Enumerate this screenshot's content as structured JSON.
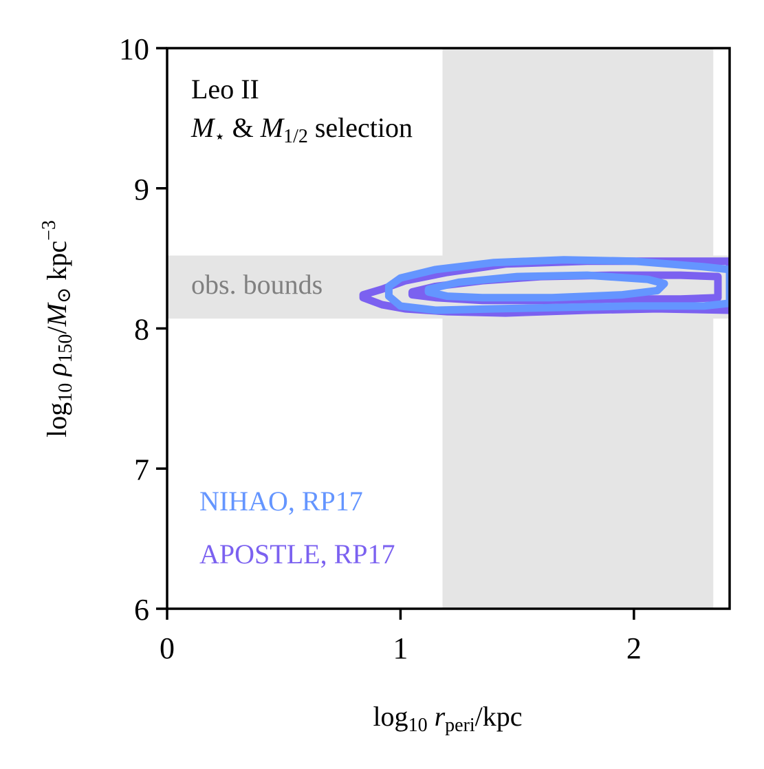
{
  "chart_data": {
    "type": "contour",
    "xlim": [
      0,
      2.41
    ],
    "ylim": [
      6,
      10
    ],
    "x_ticks": [
      0,
      1,
      2
    ],
    "y_ticks": [
      6,
      7,
      8,
      9,
      10
    ],
    "xlabel": {
      "prefix": "log",
      "sub": "10",
      "var": "r",
      "var_sub": "peri",
      "unit": "/kpc"
    },
    "ylabel": {
      "prefix": "log",
      "sub": "10",
      "var": "ρ",
      "var_sub": "150",
      "unit_pre": "/",
      "unit_m": "M",
      "unit_odot": "⊙",
      "unit_kpc": " kpc",
      "unit_exp": "−3"
    },
    "annotation": {
      "name": "Leo II",
      "sel_m": "M",
      "sel_star": "⋆",
      "sel_amp": " & ",
      "sel_m2": "M",
      "sel_half": "1/2",
      "sel_word": " selection"
    },
    "bands": [
      {
        "orientation": "vertical",
        "x_range": [
          1.18,
          2.34
        ],
        "color": "#e5e5e5"
      },
      {
        "orientation": "horizontal",
        "y_range": [
          8.07,
          8.52
        ],
        "color": "#e5e5e5",
        "label": "obs. bounds",
        "label_color": "#808080"
      }
    ],
    "series": [
      {
        "name": "APOSTLE, RP17",
        "color": "#7b61f0",
        "contours": [
          [
            [
              0.84,
              8.24
            ],
            [
              0.92,
              8.28
            ],
            [
              1.02,
              8.34
            ],
            [
              1.2,
              8.4
            ],
            [
              1.45,
              8.46
            ],
            [
              1.8,
              8.48
            ],
            [
              2.1,
              8.48
            ],
            [
              2.41,
              8.48
            ],
            [
              2.41,
              8.13
            ],
            [
              2.1,
              8.14
            ],
            [
              1.8,
              8.13
            ],
            [
              1.45,
              8.11
            ],
            [
              1.2,
              8.12
            ],
            [
              1.02,
              8.14
            ],
            [
              0.92,
              8.17
            ],
            [
              0.84,
              8.22
            ]
          ],
          [
            [
              1.05,
              8.26
            ],
            [
              1.15,
              8.3
            ],
            [
              1.35,
              8.34
            ],
            [
              1.6,
              8.37
            ],
            [
              1.9,
              8.38
            ],
            [
              2.2,
              8.38
            ],
            [
              2.36,
              8.37
            ],
            [
              2.36,
              8.22
            ],
            [
              2.2,
              8.21
            ],
            [
              1.9,
              8.21
            ],
            [
              1.6,
              8.2
            ],
            [
              1.35,
              8.2
            ],
            [
              1.15,
              8.22
            ],
            [
              1.05,
              8.24
            ]
          ]
        ]
      },
      {
        "name": "NIHAO, RP17",
        "color": "#6495ff",
        "contours": [
          [
            [
              0.95,
              8.3
            ],
            [
              1.0,
              8.36
            ],
            [
              1.15,
              8.42
            ],
            [
              1.4,
              8.47
            ],
            [
              1.7,
              8.49
            ],
            [
              2.0,
              8.48
            ],
            [
              2.3,
              8.44
            ],
            [
              2.41,
              8.42
            ],
            [
              2.41,
              8.18
            ],
            [
              2.3,
              8.16
            ],
            [
              2.0,
              8.16
            ],
            [
              1.7,
              8.15
            ],
            [
              1.4,
              8.14
            ],
            [
              1.15,
              8.13
            ],
            [
              1.0,
              8.16
            ],
            [
              0.95,
              8.23
            ]
          ],
          [
            [
              1.12,
              8.28
            ],
            [
              1.25,
              8.33
            ],
            [
              1.5,
              8.37
            ],
            [
              1.8,
              8.38
            ],
            [
              2.06,
              8.35
            ],
            [
              2.13,
              8.32
            ],
            [
              2.1,
              8.27
            ],
            [
              1.95,
              8.24
            ],
            [
              1.65,
              8.22
            ],
            [
              1.35,
              8.22
            ],
            [
              1.2,
              8.23
            ],
            [
              1.12,
              8.26
            ]
          ]
        ]
      }
    ]
  }
}
